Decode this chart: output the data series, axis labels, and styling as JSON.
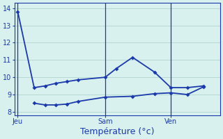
{
  "background_color": "#d8f0ee",
  "grid_color": "#b8d8d4",
  "line_color": "#1a3aab",
  "spine_color": "#1a3aab",
  "ylim": [
    7.8,
    14.3
  ],
  "xlabel": "Température (°c)",
  "x_tick_labels": [
    "Jeu",
    "Sam",
    "Ven"
  ],
  "x_tick_pos": [
    0,
    8,
    14
  ],
  "vline_pos": [
    0,
    8,
    14
  ],
  "series1_x": [
    0,
    1.5,
    2.5,
    3.5,
    4.5,
    5.5,
    8,
    9,
    10.5,
    12.5,
    14,
    15.5,
    17
  ],
  "series1_y": [
    13.8,
    9.4,
    9.5,
    9.65,
    9.75,
    9.85,
    10.0,
    10.5,
    11.15,
    10.3,
    9.4,
    9.4,
    9.5
  ],
  "series2_x": [
    1.5,
    2.5,
    3.5,
    4.5,
    5.5,
    8,
    10.5,
    12.5,
    14,
    15.5,
    17
  ],
  "series2_y": [
    8.5,
    8.4,
    8.4,
    8.45,
    8.6,
    8.85,
    8.9,
    9.05,
    9.1,
    9.0,
    9.45
  ],
  "yticks": [
    8,
    9,
    10,
    11,
    12,
    13,
    14
  ],
  "xlim": [
    -0.3,
    18.5
  ],
  "figsize": [
    3.2,
    2.0
  ],
  "dpi": 100,
  "tick_fontsize": 7,
  "xlabel_fontsize": 9,
  "marker": "D",
  "markersize": 3,
  "linewidth": 1.3
}
